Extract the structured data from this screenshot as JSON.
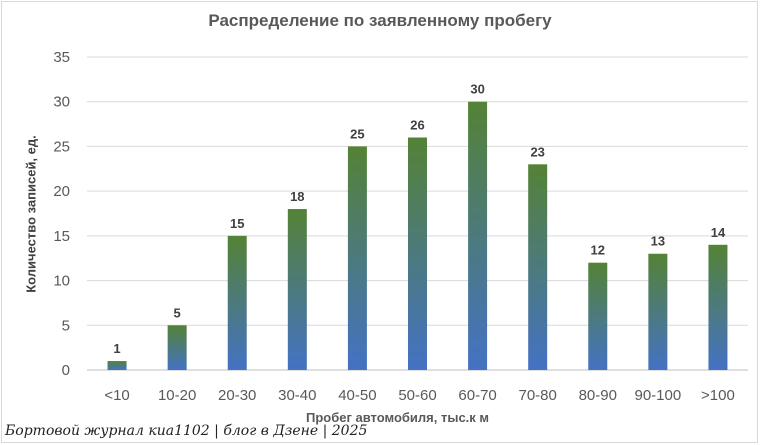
{
  "chart_data": {
    "type": "bar",
    "title": "Распределение по заявленному  пробегу",
    "xlabel": "Пробег автомобиля, тыс.к м",
    "ylabel": "Количество записей, ед.",
    "categories": [
      "<10",
      "10-20",
      "20-30",
      "30-40",
      "40-50",
      "50-60",
      "60-70",
      "70-80",
      "80-90",
      "90-100",
      ">100"
    ],
    "values": [
      1,
      5,
      15,
      18,
      25,
      26,
      30,
      23,
      12,
      13,
      14
    ],
    "ylim": [
      0,
      35
    ],
    "yticks": [
      0,
      5,
      10,
      15,
      20,
      25,
      30,
      35
    ],
    "grid": true,
    "legend": "none",
    "colors": {
      "bar_top": "#548235",
      "bar_bottom": "#4472c4",
      "grid": "#d9d9d9"
    }
  },
  "watermark": "Бортовой журнал киа1102 | блог в Дзене | 2025"
}
